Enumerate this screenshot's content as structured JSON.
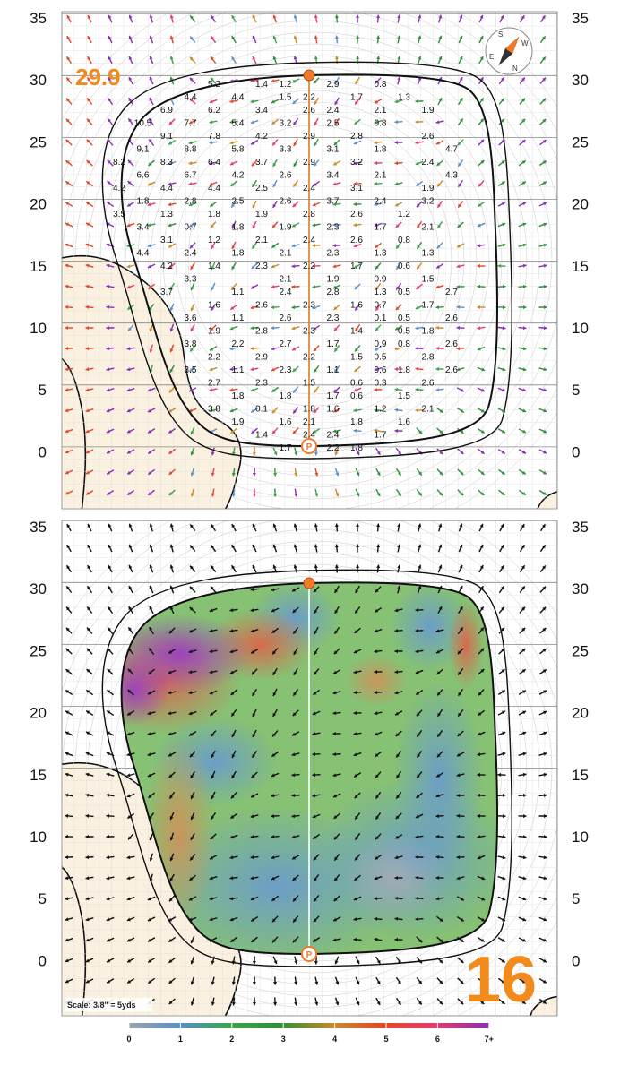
{
  "hole_number": "16",
  "distance_label": "29.9",
  "scale_label": "Scale: 3/8\" = 5yds",
  "y_axis_ticks": [
    "35",
    "30",
    "25",
    "20",
    "15",
    "10",
    "5",
    "0"
  ],
  "legend": {
    "ticks": [
      "0",
      "1",
      "2",
      "3",
      "4",
      "5",
      "6",
      "7+"
    ],
    "colors": [
      "#9aa3ab",
      "#5b8fc9",
      "#3aa34a",
      "#2f8f3a",
      "#c98a2a",
      "#e0462a",
      "#e23c6a",
      "#8a2fb0"
    ]
  },
  "colors": {
    "accent_orange": "#f28b1e",
    "sand": "#fbf1e1",
    "green_line": "#111111"
  },
  "compass_letters": [
    "S",
    "W",
    "E",
    "N"
  ],
  "slope_grid": [
    {
      "v": "5.2",
      "c": 6,
      "r": 0
    },
    {
      "v": "1.4",
      "c": 8,
      "r": 0
    },
    {
      "v": "1.2",
      "c": 9,
      "r": 0
    },
    {
      "v": "2.9",
      "c": 11,
      "r": 0
    },
    {
      "v": "0.8",
      "c": 13,
      "r": 0
    },
    {
      "v": "4.4",
      "c": 5,
      "r": 1
    },
    {
      "v": "4.4",
      "c": 7,
      "r": 1
    },
    {
      "v": "1.5",
      "c": 9,
      "r": 1
    },
    {
      "v": "2.2",
      "c": 10,
      "r": 1
    },
    {
      "v": "1.7",
      "c": 12,
      "r": 1
    },
    {
      "v": "1.3",
      "c": 14,
      "r": 1
    },
    {
      "v": "6.9",
      "c": 4,
      "r": 2
    },
    {
      "v": "6.2",
      "c": 6,
      "r": 2
    },
    {
      "v": "3.4",
      "c": 8,
      "r": 2
    },
    {
      "v": "2.6",
      "c": 10,
      "r": 2
    },
    {
      "v": "2.4",
      "c": 11,
      "r": 2
    },
    {
      "v": "2.1",
      "c": 13,
      "r": 2
    },
    {
      "v": "1.9",
      "c": 15,
      "r": 2
    },
    {
      "v": "10.5",
      "c": 3,
      "r": 3
    },
    {
      "v": "7.7",
      "c": 5,
      "r": 3
    },
    {
      "v": "5.4",
      "c": 7,
      "r": 3
    },
    {
      "v": "3.2",
      "c": 9,
      "r": 3
    },
    {
      "v": "2.5",
      "c": 11,
      "r": 3
    },
    {
      "v": "0.8",
      "c": 13,
      "r": 3
    },
    {
      "v": "9.1",
      "c": 4,
      "r": 4
    },
    {
      "v": "7.8",
      "c": 6,
      "r": 4
    },
    {
      "v": "4.2",
      "c": 8,
      "r": 4
    },
    {
      "v": "2.9",
      "c": 10,
      "r": 4
    },
    {
      "v": "2.8",
      "c": 12,
      "r": 4
    },
    {
      "v": "2.6",
      "c": 15,
      "r": 4
    },
    {
      "v": "9.1",
      "c": 3,
      "r": 5
    },
    {
      "v": "8.8",
      "c": 5,
      "r": 5
    },
    {
      "v": "5.8",
      "c": 7,
      "r": 5
    },
    {
      "v": "3.3",
      "c": 9,
      "r": 5
    },
    {
      "v": "3.1",
      "c": 11,
      "r": 5
    },
    {
      "v": "1.8",
      "c": 13,
      "r": 5
    },
    {
      "v": "4.7",
      "c": 16,
      "r": 5
    },
    {
      "v": "8.2",
      "c": 2,
      "r": 6
    },
    {
      "v": "8.3",
      "c": 4,
      "r": 6
    },
    {
      "v": "6.4",
      "c": 6,
      "r": 6
    },
    {
      "v": "3.7",
      "c": 8,
      "r": 6
    },
    {
      "v": "2.9",
      "c": 10,
      "r": 6
    },
    {
      "v": "3.2",
      "c": 12,
      "r": 6
    },
    {
      "v": "2.4",
      "c": 15,
      "r": 6
    },
    {
      "v": "6.6",
      "c": 3,
      "r": 7
    },
    {
      "v": "6.7",
      "c": 5,
      "r": 7
    },
    {
      "v": "4.2",
      "c": 7,
      "r": 7
    },
    {
      "v": "2.6",
      "c": 9,
      "r": 7
    },
    {
      "v": "3.4",
      "c": 11,
      "r": 7
    },
    {
      "v": "2.1",
      "c": 13,
      "r": 7
    },
    {
      "v": "4.3",
      "c": 16,
      "r": 7
    },
    {
      "v": "4.2",
      "c": 2,
      "r": 8
    },
    {
      "v": "4.4",
      "c": 4,
      "r": 8
    },
    {
      "v": "4.4",
      "c": 6,
      "r": 8
    },
    {
      "v": "2.5",
      "c": 8,
      "r": 8
    },
    {
      "v": "2.4",
      "c": 10,
      "r": 8
    },
    {
      "v": "3.1",
      "c": 12,
      "r": 8
    },
    {
      "v": "1.9",
      "c": 15,
      "r": 8
    },
    {
      "v": "1.8",
      "c": 3,
      "r": 9
    },
    {
      "v": "2.8",
      "c": 5,
      "r": 9
    },
    {
      "v": "2.5",
      "c": 7,
      "r": 9
    },
    {
      "v": "2.6",
      "c": 9,
      "r": 9
    },
    {
      "v": "3.7",
      "c": 11,
      "r": 9
    },
    {
      "v": "2.4",
      "c": 13,
      "r": 9
    },
    {
      "v": "3.2",
      "c": 15,
      "r": 9
    },
    {
      "v": "3.5",
      "c": 2,
      "r": 10
    },
    {
      "v": "1.3",
      "c": 4,
      "r": 10
    },
    {
      "v": "1.8",
      "c": 6,
      "r": 10
    },
    {
      "v": "1.9",
      "c": 8,
      "r": 10
    },
    {
      "v": "2.8",
      "c": 10,
      "r": 10
    },
    {
      "v": "2.6",
      "c": 12,
      "r": 10
    },
    {
      "v": "1.2",
      "c": 14,
      "r": 10
    },
    {
      "v": "3.4",
      "c": 3,
      "r": 11
    },
    {
      "v": "0.7",
      "c": 5,
      "r": 11
    },
    {
      "v": "1.8",
      "c": 7,
      "r": 11
    },
    {
      "v": "1.9",
      "c": 9,
      "r": 11
    },
    {
      "v": "2.3",
      "c": 11,
      "r": 11
    },
    {
      "v": "1.7",
      "c": 13,
      "r": 11
    },
    {
      "v": "2.1",
      "c": 15,
      "r": 11
    },
    {
      "v": "3.1",
      "c": 4,
      "r": 12
    },
    {
      "v": "1.2",
      "c": 6,
      "r": 12
    },
    {
      "v": "2.1",
      "c": 8,
      "r": 12
    },
    {
      "v": "2.4",
      "c": 10,
      "r": 12
    },
    {
      "v": "2.6",
      "c": 12,
      "r": 12
    },
    {
      "v": "0.8",
      "c": 14,
      "r": 12
    },
    {
      "v": "4.4",
      "c": 3,
      "r": 13
    },
    {
      "v": "2.4",
      "c": 5,
      "r": 13
    },
    {
      "v": "1.8",
      "c": 7,
      "r": 13
    },
    {
      "v": "2.1",
      "c": 9,
      "r": 13
    },
    {
      "v": "2.3",
      "c": 11,
      "r": 13
    },
    {
      "v": "1.3",
      "c": 13,
      "r": 13
    },
    {
      "v": "1.3",
      "c": 15,
      "r": 13
    },
    {
      "v": "4.2",
      "c": 4,
      "r": 14
    },
    {
      "v": "1.4",
      "c": 6,
      "r": 14
    },
    {
      "v": "2.3",
      "c": 8,
      "r": 14
    },
    {
      "v": "2.2",
      "c": 10,
      "r": 14
    },
    {
      "v": "1.7",
      "c": 12,
      "r": 14
    },
    {
      "v": "0.6",
      "c": 14,
      "r": 14
    },
    {
      "v": "3.3",
      "c": 5,
      "r": 15
    },
    {
      "v": "2.1",
      "c": 9,
      "r": 15
    },
    {
      "v": "1.9",
      "c": 11,
      "r": 15
    },
    {
      "v": "0.9",
      "c": 13,
      "r": 15
    },
    {
      "v": "1.5",
      "c": 15,
      "r": 15
    },
    {
      "v": "3.7",
      "c": 4,
      "r": 16
    },
    {
      "v": "1.1",
      "c": 7,
      "r": 16
    },
    {
      "v": "2.4",
      "c": 9,
      "r": 16
    },
    {
      "v": "2.8",
      "c": 11,
      "r": 16
    },
    {
      "v": "1.3",
      "c": 13,
      "r": 16
    },
    {
      "v": "0.5",
      "c": 14,
      "r": 16
    },
    {
      "v": "2.7",
      "c": 16,
      "r": 16
    },
    {
      "v": "1.6",
      "c": 6,
      "r": 17
    },
    {
      "v": "2.6",
      "c": 8,
      "r": 17
    },
    {
      "v": "2.3",
      "c": 10,
      "r": 17
    },
    {
      "v": "1.6",
      "c": 12,
      "r": 17
    },
    {
      "v": "0.7",
      "c": 13,
      "r": 17
    },
    {
      "v": "1.7",
      "c": 15,
      "r": 17
    },
    {
      "v": "3.6",
      "c": 5,
      "r": 18
    },
    {
      "v": "1.1",
      "c": 7,
      "r": 18
    },
    {
      "v": "2.6",
      "c": 9,
      "r": 18
    },
    {
      "v": "2.3",
      "c": 11,
      "r": 18
    },
    {
      "v": "0.1",
      "c": 13,
      "r": 18
    },
    {
      "v": "0.5",
      "c": 14,
      "r": 18
    },
    {
      "v": "2.6",
      "c": 16,
      "r": 18
    },
    {
      "v": "1.9",
      "c": 6,
      "r": 19
    },
    {
      "v": "2.8",
      "c": 8,
      "r": 19
    },
    {
      "v": "2.3",
      "c": 10,
      "r": 19
    },
    {
      "v": "1.4",
      "c": 12,
      "r": 19
    },
    {
      "v": "0.5",
      "c": 14,
      "r": 19
    },
    {
      "v": "1.8",
      "c": 15,
      "r": 19
    },
    {
      "v": "3.8",
      "c": 5,
      "r": 20
    },
    {
      "v": "2.2",
      "c": 7,
      "r": 20
    },
    {
      "v": "2.7",
      "c": 9,
      "r": 20
    },
    {
      "v": "1.7",
      "c": 11,
      "r": 20
    },
    {
      "v": "0.9",
      "c": 13,
      "r": 20
    },
    {
      "v": "0.8",
      "c": 14,
      "r": 20
    },
    {
      "v": "2.6",
      "c": 16,
      "r": 20
    },
    {
      "v": "2.2",
      "c": 6,
      "r": 21
    },
    {
      "v": "2.9",
      "c": 8,
      "r": 21
    },
    {
      "v": "2.2",
      "c": 10,
      "r": 21
    },
    {
      "v": "1.5",
      "c": 12,
      "r": 21
    },
    {
      "v": "0.5",
      "c": 13,
      "r": 21
    },
    {
      "v": "2.8",
      "c": 15,
      "r": 21
    },
    {
      "v": "3.5",
      "c": 5,
      "r": 22
    },
    {
      "v": "1.1",
      "c": 7,
      "r": 22
    },
    {
      "v": "2.3",
      "c": 9,
      "r": 22
    },
    {
      "v": "1.1",
      "c": 11,
      "r": 22
    },
    {
      "v": "0.6",
      "c": 13,
      "r": 22
    },
    {
      "v": "1.8",
      "c": 14,
      "r": 22
    },
    {
      "v": "2.6",
      "c": 16,
      "r": 22
    },
    {
      "v": "2.7",
      "c": 6,
      "r": 23
    },
    {
      "v": "2.3",
      "c": 8,
      "r": 23
    },
    {
      "v": "1.5",
      "c": 10,
      "r": 23
    },
    {
      "v": "0.6",
      "c": 12,
      "r": 23
    },
    {
      "v": "0.3",
      "c": 13,
      "r": 23
    },
    {
      "v": "2.6",
      "c": 15,
      "r": 23
    },
    {
      "v": "1.8",
      "c": 7,
      "r": 24
    },
    {
      "v": "1.8",
      "c": 9,
      "r": 24
    },
    {
      "v": "1.7",
      "c": 11,
      "r": 24
    },
    {
      "v": "0.6",
      "c": 12,
      "r": 24
    },
    {
      "v": "1.5",
      "c": 14,
      "r": 24
    },
    {
      "v": "3.8",
      "c": 6,
      "r": 25
    },
    {
      "v": "0.1",
      "c": 8,
      "r": 25
    },
    {
      "v": "1.8",
      "c": 10,
      "r": 25
    },
    {
      "v": "1.6",
      "c": 11,
      "r": 25
    },
    {
      "v": "1.2",
      "c": 13,
      "r": 25
    },
    {
      "v": "2.1",
      "c": 15,
      "r": 25
    },
    {
      "v": "1.9",
      "c": 7,
      "r": 26
    },
    {
      "v": "1.6",
      "c": 9,
      "r": 26
    },
    {
      "v": "2.1",
      "c": 10,
      "r": 26
    },
    {
      "v": "1.8",
      "c": 12,
      "r": 26
    },
    {
      "v": "1.6",
      "c": 14,
      "r": 26
    },
    {
      "v": "1.4",
      "c": 8,
      "r": 27
    },
    {
      "v": "2.4",
      "c": 10,
      "r": 27
    },
    {
      "v": "2.4",
      "c": 11,
      "r": 27
    },
    {
      "v": "1.7",
      "c": 13,
      "r": 27
    },
    {
      "v": "1.7",
      "c": 9,
      "r": 28
    },
    {
      "v": "2.2",
      "c": 11,
      "r": 28
    },
    {
      "v": "1.8",
      "c": 12,
      "r": 28
    }
  ]
}
